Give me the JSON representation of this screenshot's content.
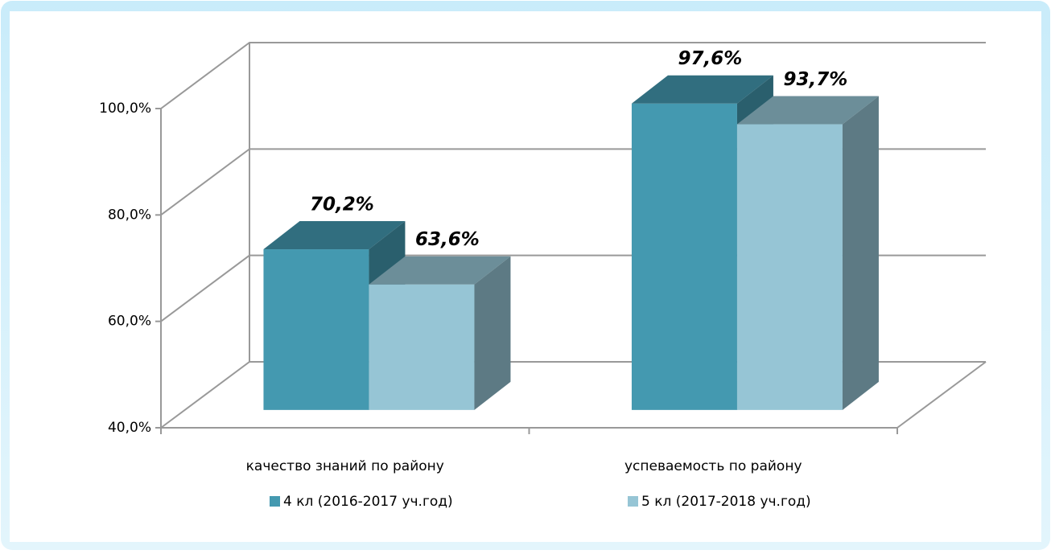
{
  "chart_data": {
    "type": "bar3d",
    "categories": [
      "качество знаний по району",
      "успеваемость по району"
    ],
    "series": [
      {
        "name": "4 кл (2016-2017 уч.год)",
        "color": "#4499b0",
        "values": [
          70.2,
          97.6
        ],
        "value_labels": [
          "70,2%",
          "97,6%"
        ]
      },
      {
        "name": "5 кл (2017-2018 уч.год)",
        "color": "#96c5d5",
        "values": [
          63.6,
          93.7
        ],
        "value_labels": [
          "63,6%",
          "93,7%"
        ]
      }
    ],
    "ylim": [
      40,
      100
    ],
    "yticks": [
      {
        "value": 40,
        "label": "40,0%"
      },
      {
        "value": 60,
        "label": "60,0%"
      },
      {
        "value": 80,
        "label": "80,0%"
      },
      {
        "value": 100,
        "label": "100,0%"
      }
    ],
    "grid": true,
    "legend": "bottom"
  }
}
